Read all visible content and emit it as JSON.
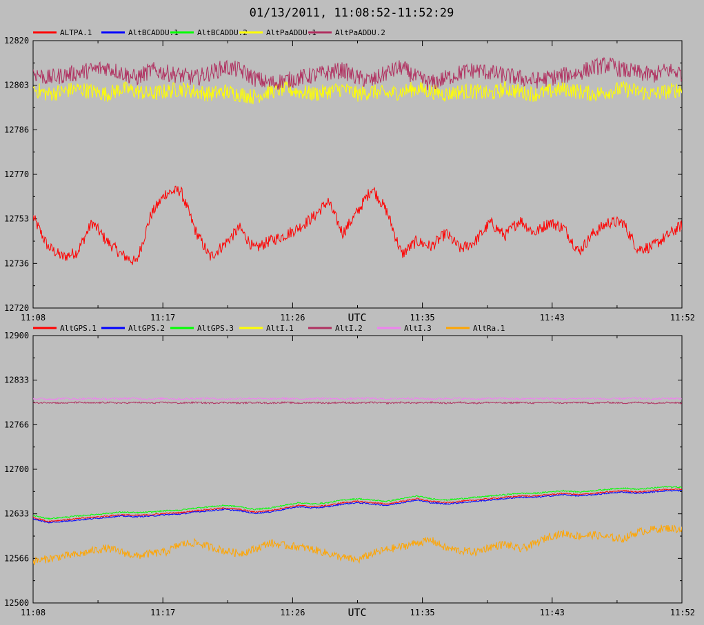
{
  "title": "01/13/2011, 11:08:52-11:52:29",
  "chart_data": [
    {
      "type": "line",
      "xlabel": "UTC",
      "x_ticks": [
        "11:08",
        "11:17",
        "11:26",
        "11:35",
        "11:43",
        "11:52"
      ],
      "y_ticks": [
        "12820",
        "12803",
        "12786",
        "12770",
        "12753",
        "12736",
        "12720"
      ],
      "ylim": [
        12720,
        12820
      ],
      "grid": false,
      "legend_position": "top-left",
      "series": [
        {
          "name": "ALTPA.1",
          "color": "#ff0000",
          "values": [
            12754,
            12743,
            12739,
            12741,
            12752,
            12745,
            12740,
            12737,
            12755,
            12763,
            12764,
            12749,
            12739,
            12744,
            12750,
            12742,
            12745,
            12747,
            12750,
            12754,
            12760,
            12748,
            12756,
            12765,
            12756,
            12740,
            12745,
            12743,
            12748,
            12742,
            12745,
            12752,
            12747,
            12753,
            12748,
            12752,
            12750,
            12741,
            12748,
            12752,
            12752,
            12742,
            12743,
            12747,
            12751
          ]
        },
        {
          "name": "AltBCADDU.1",
          "color": "#0000ff",
          "values": []
        },
        {
          "name": "AltBCADDU.2",
          "color": "#00ff00",
          "values": []
        },
        {
          "name": "AltPaADDU.1",
          "color": "#ffff00",
          "values": [
            12802,
            12800,
            12801,
            12802,
            12801,
            12800,
            12802,
            12801,
            12800,
            12801,
            12802,
            12801,
            12800,
            12801,
            12800,
            12799,
            12801,
            12802,
            12801,
            12800,
            12801,
            12802,
            12800,
            12801,
            12800,
            12801,
            12802,
            12801,
            12800,
            12801,
            12801,
            12800,
            12802,
            12801,
            12800,
            12801,
            12802,
            12801,
            12800,
            12801,
            12802,
            12801,
            12800,
            12801,
            12802
          ]
        },
        {
          "name": "AltPaADDU.2",
          "color": "#b03060",
          "values": [
            12808,
            12806,
            12807,
            12808,
            12809,
            12810,
            12808,
            12806,
            12809,
            12808,
            12807,
            12806,
            12808,
            12810,
            12809,
            12806,
            12804,
            12805,
            12806,
            12807,
            12808,
            12809,
            12806,
            12805,
            12808,
            12810,
            12806,
            12804,
            12806,
            12808,
            12809,
            12808,
            12807,
            12806,
            12805,
            12806,
            12807,
            12808,
            12810,
            12811,
            12809,
            12808,
            12807,
            12809,
            12808
          ]
        }
      ]
    },
    {
      "type": "line",
      "xlabel": "UTC",
      "x_ticks": [
        "11:08",
        "11:17",
        "11:26",
        "11:35",
        "11:43",
        "11:52"
      ],
      "y_ticks": [
        "12900",
        "12833",
        "12766",
        "12700",
        "12633",
        "12566",
        "12500"
      ],
      "ylim": [
        12500,
        12900
      ],
      "grid": false,
      "legend_position": "top-left",
      "series": [
        {
          "name": "AltGPS.1",
          "color": "#ff0000",
          "values": [
            12628,
            12622,
            12624,
            12626,
            12628,
            12630,
            12632,
            12631,
            12632,
            12634,
            12635,
            12638,
            12640,
            12642,
            12640,
            12636,
            12638,
            12642,
            12646,
            12644,
            12646,
            12650,
            12652,
            12650,
            12648,
            12652,
            12656,
            12652,
            12650,
            12652,
            12654,
            12656,
            12658,
            12660,
            12660,
            12662,
            12664,
            12662,
            12664,
            12666,
            12668,
            12666,
            12668,
            12670,
            12670
          ]
        },
        {
          "name": "AltGPS.2",
          "color": "#0000ff",
          "values": [
            12626,
            12620,
            12622,
            12624,
            12626,
            12628,
            12630,
            12629,
            12630,
            12632,
            12633,
            12636,
            12638,
            12640,
            12638,
            12634,
            12636,
            12640,
            12644,
            12642,
            12644,
            12648,
            12650,
            12648,
            12646,
            12650,
            12654,
            12650,
            12648,
            12650,
            12652,
            12654,
            12656,
            12658,
            12658,
            12660,
            12662,
            12660,
            12662,
            12664,
            12666,
            12664,
            12666,
            12668,
            12668
          ]
        },
        {
          "name": "AltGPS.3",
          "color": "#00ff00",
          "values": [
            12631,
            12626,
            12628,
            12630,
            12632,
            12634,
            12636,
            12635,
            12636,
            12638,
            12639,
            12642,
            12644,
            12646,
            12644,
            12640,
            12642,
            12646,
            12650,
            12648,
            12650,
            12654,
            12656,
            12654,
            12652,
            12656,
            12660,
            12656,
            12654,
            12656,
            12658,
            12660,
            12662,
            12664,
            12664,
            12666,
            12668,
            12666,
            12668,
            12670,
            12672,
            12670,
            12672,
            12674,
            12673
          ]
        },
        {
          "name": "AltI.1",
          "color": "#ffff00",
          "values": []
        },
        {
          "name": "AltI.2",
          "color": "#b03060",
          "values": [
            12799,
            12800,
            12799,
            12800,
            12799,
            12800,
            12799,
            12800,
            12799,
            12800,
            12799,
            12800,
            12799,
            12800,
            12799,
            12800,
            12799,
            12800,
            12799,
            12800,
            12799,
            12800,
            12799,
            12800,
            12799,
            12800,
            12799,
            12800,
            12799,
            12800,
            12799,
            12800,
            12799,
            12800,
            12799,
            12800,
            12799,
            12800,
            12799,
            12800,
            12799,
            12800,
            12799,
            12800,
            12799
          ]
        },
        {
          "name": "AltI.3",
          "color": "#ee82ee",
          "values": [
            12806,
            12805,
            12806,
            12805,
            12806,
            12805,
            12806,
            12806,
            12805,
            12806,
            12805,
            12806,
            12806,
            12805,
            12806,
            12806,
            12805,
            12806,
            12805,
            12806,
            12806,
            12805,
            12806,
            12806,
            12805,
            12806,
            12806,
            12805,
            12806,
            12806,
            12805,
            12806,
            12806,
            12805,
            12806,
            12806,
            12805,
            12806,
            12806,
            12805,
            12806,
            12806,
            12805,
            12806,
            12806
          ]
        },
        {
          "name": "AltRa.1",
          "color": "#ffa500",
          "values": [
            12562,
            12566,
            12570,
            12572,
            12578,
            12582,
            12576,
            12570,
            12574,
            12576,
            12588,
            12590,
            12584,
            12578,
            12574,
            12580,
            12590,
            12586,
            12584,
            12580,
            12574,
            12568,
            12564,
            12574,
            12580,
            12584,
            12590,
            12594,
            12582,
            12578,
            12576,
            12584,
            12588,
            12580,
            12588,
            12600,
            12604,
            12600,
            12602,
            12598,
            12596,
            12606,
            12610,
            12612,
            12610
          ]
        }
      ]
    }
  ]
}
